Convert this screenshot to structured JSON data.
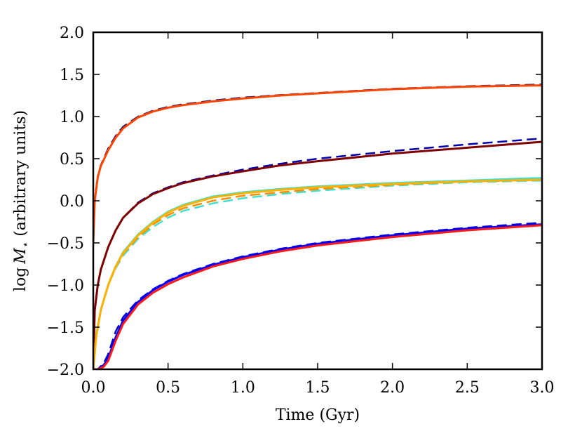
{
  "chart_data": {
    "type": "line",
    "title": "",
    "xlabel": "Time (Gyr)",
    "ylabel_prefix": "log",
    "ylabel_symbol": "M",
    "ylabel_subscript": "⋆",
    "ylabel_suffix": " (arbitrary units)",
    "xlim": [
      0.0,
      3.0
    ],
    "ylim": [
      -2.0,
      2.0
    ],
    "xticks": [
      0.0,
      0.5,
      1.0,
      1.5,
      2.0,
      2.5,
      3.0
    ],
    "xtick_labels": [
      "0.0",
      "0.5",
      "1.0",
      "1.5",
      "2.0",
      "2.5",
      "3.0"
    ],
    "yticks": [
      -2.0,
      -1.5,
      -1.0,
      -0.5,
      0.0,
      0.5,
      1.0,
      1.5,
      2.0
    ],
    "ytick_labels": [
      "−2.0",
      "−1.5",
      "−1.0",
      "−0.5",
      "0.0",
      "0.5",
      "1.0",
      "1.5",
      "2.0"
    ],
    "grid": false,
    "series": [
      {
        "name": "top-dashed",
        "color": "#191970",
        "style": "dashed",
        "width": 2.5,
        "x": [
          0.0,
          0.01,
          0.03,
          0.05,
          0.1,
          0.15,
          0.2,
          0.3,
          0.4,
          0.5,
          0.6,
          0.8,
          1.0,
          1.25,
          1.5,
          2.0,
          2.5,
          3.0
        ],
        "y": [
          -0.5,
          0.0,
          0.29,
          0.42,
          0.62,
          0.77,
          0.88,
          1.0,
          1.07,
          1.115,
          1.145,
          1.19,
          1.225,
          1.255,
          1.28,
          1.33,
          1.36,
          1.38
        ]
      },
      {
        "name": "top-solid",
        "color": "#ff4500",
        "style": "solid",
        "width": 3,
        "x": [
          0.0,
          0.01,
          0.03,
          0.05,
          0.1,
          0.15,
          0.2,
          0.3,
          0.4,
          0.5,
          0.6,
          0.8,
          1.0,
          1.25,
          1.5,
          2.0,
          2.5,
          3.0
        ],
        "y": [
          -0.5,
          0.0,
          0.28,
          0.41,
          0.6,
          0.75,
          0.86,
          0.99,
          1.06,
          1.105,
          1.135,
          1.18,
          1.215,
          1.25,
          1.275,
          1.325,
          1.355,
          1.37
        ]
      },
      {
        "name": "second-dashed",
        "color": "#0000aa",
        "style": "dashed",
        "width": 2.5,
        "x": [
          0.0,
          0.01,
          0.03,
          0.05,
          0.1,
          0.15,
          0.2,
          0.3,
          0.4,
          0.5,
          0.6,
          0.8,
          1.0,
          1.25,
          1.5,
          2.0,
          2.5,
          3.0
        ],
        "y": [
          -2.0,
          -1.3,
          -1.0,
          -0.82,
          -0.55,
          -0.35,
          -0.2,
          -0.02,
          0.09,
          0.16,
          0.22,
          0.3,
          0.37,
          0.44,
          0.5,
          0.59,
          0.67,
          0.74
        ]
      },
      {
        "name": "second-solid",
        "color": "#800000",
        "style": "solid",
        "width": 3,
        "x": [
          0.0,
          0.01,
          0.03,
          0.05,
          0.1,
          0.15,
          0.2,
          0.3,
          0.4,
          0.5,
          0.6,
          0.8,
          1.0,
          1.25,
          1.5,
          2.0,
          2.5,
          3.0
        ],
        "y": [
          -2.0,
          -1.3,
          -1.0,
          -0.82,
          -0.55,
          -0.35,
          -0.2,
          -0.03,
          0.08,
          0.15,
          0.21,
          0.29,
          0.35,
          0.42,
          0.47,
          0.56,
          0.63,
          0.7
        ]
      },
      {
        "name": "third-dashed-cyan",
        "color": "#40e0d0",
        "style": "dashed",
        "width": 2.5,
        "x": [
          0.0,
          0.02,
          0.05,
          0.1,
          0.15,
          0.2,
          0.3,
          0.4,
          0.5,
          0.6,
          0.8,
          1.0,
          1.25,
          1.5,
          2.0,
          2.5,
          3.0
        ],
        "y": [
          -2.0,
          -1.6,
          -1.3,
          -1.0,
          -0.8,
          -0.65,
          -0.45,
          -0.31,
          -0.2,
          -0.12,
          -0.03,
          0.03,
          0.08,
          0.12,
          0.18,
          0.22,
          0.24
        ]
      },
      {
        "name": "third-dashed-orange",
        "color": "#ff8c00",
        "style": "dashed",
        "width": 2.5,
        "x": [
          0.0,
          0.02,
          0.05,
          0.1,
          0.15,
          0.2,
          0.3,
          0.4,
          0.5,
          0.6,
          0.8,
          1.0,
          1.25,
          1.5,
          2.0,
          2.5,
          3.0
        ],
        "y": [
          -2.0,
          -1.6,
          -1.3,
          -1.0,
          -0.79,
          -0.63,
          -0.43,
          -0.28,
          -0.17,
          -0.09,
          0.0,
          0.06,
          0.1,
          0.14,
          0.19,
          0.23,
          0.25
        ]
      },
      {
        "name": "third-solid-cyan",
        "color": "#40e0d0",
        "style": "solid",
        "width": 3,
        "x": [
          0.0,
          0.02,
          0.05,
          0.1,
          0.15,
          0.2,
          0.3,
          0.4,
          0.5,
          0.6,
          0.8,
          1.0,
          1.25,
          1.5,
          2.0,
          2.5,
          3.0
        ],
        "y": [
          -2.0,
          -1.6,
          -1.3,
          -1.0,
          -0.78,
          -0.61,
          -0.4,
          -0.25,
          -0.13,
          -0.05,
          0.05,
          0.1,
          0.14,
          0.17,
          0.21,
          0.24,
          0.27
        ]
      },
      {
        "name": "third-solid-orange",
        "color": "#ffb000",
        "style": "solid",
        "width": 3,
        "x": [
          0.0,
          0.02,
          0.05,
          0.1,
          0.15,
          0.2,
          0.3,
          0.4,
          0.5,
          0.6,
          0.8,
          1.0,
          1.25,
          1.5,
          2.0,
          2.5,
          3.0
        ],
        "y": [
          -2.0,
          -1.6,
          -1.3,
          -1.0,
          -0.78,
          -0.62,
          -0.41,
          -0.26,
          -0.14,
          -0.06,
          0.04,
          0.09,
          0.13,
          0.16,
          0.2,
          0.23,
          0.25
        ]
      },
      {
        "name": "bottom-dashed",
        "color": "#0000cd",
        "style": "dashed",
        "width": 2.5,
        "x": [
          0.0,
          0.03,
          0.07,
          0.1,
          0.15,
          0.2,
          0.3,
          0.4,
          0.5,
          0.6,
          0.8,
          1.0,
          1.25,
          1.5,
          2.0,
          2.5,
          3.0
        ],
        "y": [
          -2.0,
          -2.0,
          -1.93,
          -1.82,
          -1.55,
          -1.38,
          -1.18,
          -1.05,
          -0.95,
          -0.87,
          -0.75,
          -0.66,
          -0.57,
          -0.5,
          -0.4,
          -0.32,
          -0.26
        ]
      },
      {
        "name": "bottom-solid-blue",
        "color": "#0000ff",
        "style": "solid",
        "width": 3,
        "x": [
          0.0,
          0.03,
          0.07,
          0.1,
          0.15,
          0.2,
          0.3,
          0.4,
          0.5,
          0.6,
          0.8,
          1.0,
          1.25,
          1.5,
          2.0,
          2.5,
          3.0
        ],
        "y": [
          -2.0,
          -2.0,
          -1.95,
          -1.87,
          -1.62,
          -1.42,
          -1.2,
          -1.06,
          -0.96,
          -0.88,
          -0.76,
          -0.67,
          -0.58,
          -0.51,
          -0.41,
          -0.33,
          -0.28
        ]
      },
      {
        "name": "bottom-solid-red",
        "color": "#ff1a1a",
        "style": "solid",
        "width": 3,
        "x": [
          0.0,
          0.03,
          0.07,
          0.1,
          0.15,
          0.2,
          0.3,
          0.4,
          0.5,
          0.6,
          0.8,
          1.0,
          1.25,
          1.5,
          2.0,
          2.5,
          3.0
        ],
        "y": [
          -2.0,
          -2.0,
          -1.97,
          -1.9,
          -1.66,
          -1.46,
          -1.23,
          -1.09,
          -0.99,
          -0.91,
          -0.78,
          -0.69,
          -0.6,
          -0.53,
          -0.43,
          -0.35,
          -0.29
        ]
      }
    ]
  }
}
